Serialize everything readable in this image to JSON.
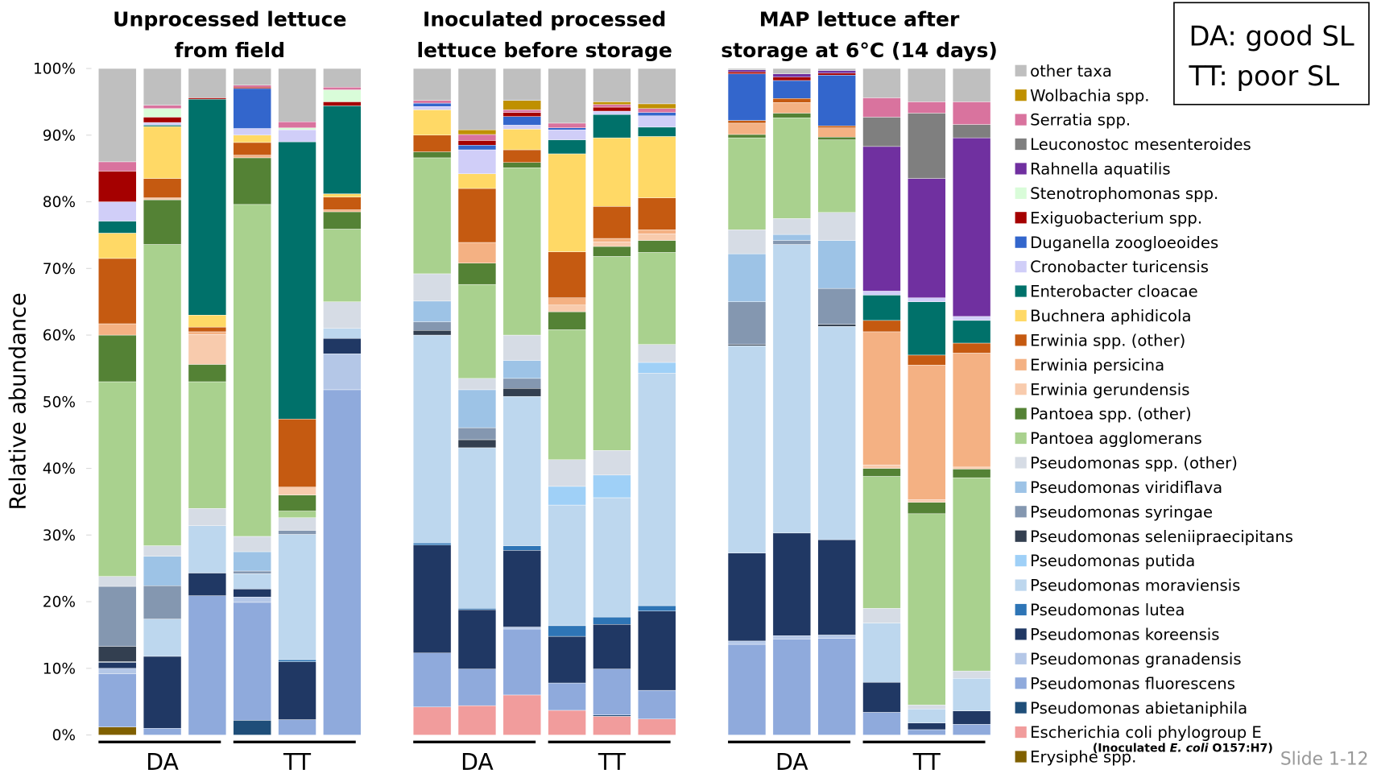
{
  "chart_data": {
    "type": "stacked_bar",
    "y_label": "Relative abundance",
    "ylim": [
      0,
      100
    ],
    "yticks": [
      {
        "value": 0,
        "label": "0%"
      },
      {
        "value": 10,
        "label": "10%"
      },
      {
        "value": 20,
        "label": "20%"
      },
      {
        "value": 30,
        "label": "30%"
      },
      {
        "value": 40,
        "label": "40%"
      },
      {
        "value": 50,
        "label": "50%"
      },
      {
        "value": 60,
        "label": "60%"
      },
      {
        "value": 70,
        "label": "70%"
      },
      {
        "value": 80,
        "label": "80%"
      },
      {
        "value": 90,
        "label": "90%"
      },
      {
        "value": 100,
        "label": "100%"
      }
    ],
    "panels": [
      {
        "title": [
          "Unprocessed lettuce",
          "from field"
        ],
        "groups": [
          "DA",
          "TT"
        ]
      },
      {
        "title": [
          "Inoculated processed",
          "lettuce before storage"
        ],
        "groups": [
          "DA",
          "TT"
        ]
      },
      {
        "title": [
          "MAP lettuce after",
          "storage at 6°C (14 days)"
        ],
        "groups": [
          "DA",
          "TT"
        ]
      }
    ],
    "categories": [
      null,
      null,
      null,
      null,
      null,
      null,
      null,
      null,
      null,
      null,
      null,
      null,
      null,
      null,
      null,
      null,
      null,
      null
    ],
    "note": [
      "DA: good SL",
      "TT: poor SL"
    ],
    "annotation": [
      "(Inoculated ",
      "E. coli",
      " O157:H7)"
    ],
    "footer": "Slide 1-12",
    "series": [
      {
        "name": "Erysiphe spp.",
        "color": "#806000",
        "values": [
          1.2,
          0,
          0,
          0,
          0,
          0,
          0,
          0,
          0,
          0,
          0,
          0,
          0,
          0,
          0,
          0,
          0,
          0
        ]
      },
      {
        "name": "Escherichia coli phylogroup E",
        "color": "#f19c9c",
        "values": [
          0,
          0,
          0,
          0,
          0,
          0,
          4.2,
          4.4,
          6,
          3.7,
          2.8,
          2.4,
          0,
          0,
          0,
          0,
          0,
          0
        ]
      },
      {
        "name": "Pseudomonas abietaniphila",
        "color": "#1f4e79",
        "values": [
          0,
          0,
          0,
          2.2,
          0,
          0,
          0,
          0,
          0,
          0,
          0.2,
          0,
          0,
          0,
          0,
          0,
          0,
          0
        ]
      },
      {
        "name": "Pseudomonas fluorescens",
        "color": "#8faadc",
        "values": [
          8,
          1,
          20.9,
          17.7,
          2.3,
          51.8,
          8.1,
          5.5,
          9.9,
          4.1,
          6.9,
          4.3,
          13.6,
          14.4,
          14.5,
          3.4,
          0.8,
          1.6
        ]
      },
      {
        "name": "Pseudomonas granadensis",
        "color": "#b4c7e7",
        "values": [
          0.8,
          0,
          0,
          0.8,
          0,
          5.4,
          0,
          0,
          0.3,
          0,
          0,
          0,
          0.5,
          0.5,
          0.5,
          0,
          0,
          0
        ]
      },
      {
        "name": "Pseudomonas koreensis",
        "color": "#203864",
        "values": [
          0.9,
          10.8,
          3.4,
          1.2,
          8.7,
          2.3,
          16.2,
          8.9,
          11.5,
          7,
          6.7,
          11.9,
          13.2,
          15.4,
          14.3,
          4.5,
          1,
          2
        ]
      },
      {
        "name": "Pseudomonas lutea",
        "color": "#2e75b6",
        "values": [
          0,
          0,
          0,
          0,
          0.3,
          0,
          0.3,
          0.2,
          0.7,
          1.6,
          1.1,
          0.8,
          0,
          0,
          0,
          0,
          0,
          0
        ]
      },
      {
        "name": "Pseudomonas moraviensis",
        "color": "#bdd7ee",
        "values": [
          0.1,
          5.6,
          7.1,
          2.3,
          18.8,
          1.5,
          31.2,
          24.1,
          22.4,
          18.1,
          17.9,
          34.9,
          31.1,
          43.3,
          32,
          8.9,
          2.1,
          4.9
        ]
      },
      {
        "name": "Pseudomonas putida",
        "color": "#9fd0f7",
        "values": [
          0,
          0,
          0,
          0,
          0,
          0,
          0,
          0,
          0,
          2.8,
          3.4,
          1.6,
          0,
          0,
          0,
          0,
          0,
          0
        ]
      },
      {
        "name": "Pseudomonas seleniipraecipitans",
        "color": "#333f50",
        "values": [
          2.3,
          0,
          0,
          0,
          0,
          0,
          0.7,
          1.2,
          1.2,
          0,
          0,
          0,
          0.2,
          0,
          0.3,
          0,
          0,
          0
        ]
      },
      {
        "name": "Pseudomonas syringae",
        "color": "#8497b0",
        "values": [
          9,
          5,
          0,
          0.4,
          0.6,
          0,
          1.3,
          1.8,
          1.5,
          0,
          0,
          0,
          6.4,
          0.6,
          5.4,
          0,
          0,
          0
        ]
      },
      {
        "name": "Pseudomonas viridiflava",
        "color": "#9dc3e6",
        "values": [
          0,
          4.4,
          0,
          2.9,
          0,
          0,
          3.1,
          5.7,
          2.7,
          0,
          0,
          0,
          7.2,
          0.9,
          7.2,
          0,
          0,
          0
        ]
      },
      {
        "name": "Pseudomonas spp. (other)",
        "color": "#d6dce5",
        "values": [
          1.5,
          1.6,
          2.6,
          2.3,
          1.9,
          4,
          4.1,
          1.7,
          3.8,
          4,
          3.7,
          2.7,
          3.6,
          2.4,
          4.2,
          2.2,
          0.6,
          1.1
        ]
      },
      {
        "name": "Pantoea agglomerans",
        "color": "#a9d18e",
        "values": [
          29.2,
          45.2,
          19,
          49.8,
          1,
          10.9,
          17.4,
          14.1,
          25.1,
          19.5,
          29.1,
          13.8,
          13.8,
          15.1,
          10.9,
          19.8,
          28.7,
          29
        ]
      },
      {
        "name": "Pantoea spp. (other)",
        "color": "#548235",
        "values": [
          7,
          6.7,
          2.6,
          7,
          2.4,
          2.6,
          0.9,
          3.2,
          0.8,
          2.7,
          1.5,
          1.8,
          0.5,
          0.7,
          0.4,
          1.2,
          1.7,
          1.3
        ]
      },
      {
        "name": "Erwinia gerundensis",
        "color": "#f8cbad",
        "values": [
          0,
          0.3,
          4.5,
          0,
          1.2,
          0,
          0,
          0,
          0,
          1,
          0.7,
          1,
          0,
          0,
          0,
          0.5,
          0.4,
          0.3
        ]
      },
      {
        "name": "Erwinia persicina",
        "color": "#f4b183",
        "values": [
          1.7,
          0,
          0.4,
          0.4,
          0,
          0.3,
          0,
          3.1,
          0,
          1.1,
          0.5,
          0.6,
          1.7,
          1.6,
          1.4,
          20,
          20.2,
          17.1
        ]
      },
      {
        "name": "Erwinia spp. (other)",
        "color": "#c55a11",
        "values": [
          9.8,
          2.9,
          0.7,
          1.9,
          10.2,
          1.9,
          2.5,
          8.1,
          1.9,
          6.9,
          4.8,
          4.8,
          0.4,
          0.6,
          0.3,
          1.7,
          1.5,
          1.5
        ]
      },
      {
        "name": "Buchnera aphidicola",
        "color": "#ffd966",
        "values": [
          3.8,
          7.8,
          1.8,
          1.1,
          0,
          0.5,
          3.8,
          2.2,
          3.1,
          14.7,
          10.3,
          9.2,
          0,
          0,
          0,
          0,
          0,
          0
        ]
      },
      {
        "name": "Enterobacter cloacae",
        "color": "#00716a",
        "values": [
          1.8,
          0.2,
          32.4,
          0,
          41.6,
          13.2,
          0,
          0,
          0,
          2.1,
          3.5,
          1.4,
          0,
          0,
          0,
          3.8,
          8,
          3.4
        ]
      },
      {
        "name": "Cronobacter turicensis",
        "color": "#d0cef8",
        "values": [
          2.9,
          0.4,
          0,
          1,
          1.8,
          0,
          0.5,
          3.6,
          0.6,
          1.5,
          0.5,
          1.7,
          0,
          0,
          0,
          0.6,
          0.6,
          0.6
        ]
      },
      {
        "name": "Duganella zoogloeoides",
        "color": "#3366cc",
        "values": [
          0,
          0,
          0,
          6,
          0,
          0,
          0.5,
          0.7,
          1.3,
          0.3,
          0,
          0.5,
          7,
          2.7,
          7.6,
          0,
          0,
          0
        ]
      },
      {
        "name": "Exiguobacterium spp.",
        "color": "#a50000",
        "values": [
          4.6,
          0.8,
          0.2,
          0.2,
          0,
          0.6,
          0,
          0.7,
          0.6,
          0,
          0.6,
          0,
          0.3,
          0.5,
          0.3,
          0,
          0,
          0
        ]
      },
      {
        "name": "Stenotrophomonas spp.",
        "color": "#d9fcd9",
        "values": [
          0,
          1.3,
          0,
          0,
          0.3,
          1.8,
          0,
          0,
          0,
          0,
          0,
          0,
          0,
          0,
          0,
          0,
          0,
          0
        ]
      },
      {
        "name": "Rahnella aquatilis",
        "color": "#7030a0",
        "values": [
          0,
          0,
          0,
          0,
          0,
          0,
          0,
          0,
          0,
          0,
          0,
          0,
          0.3,
          0.5,
          0.4,
          21.7,
          17.9,
          26.8
        ]
      },
      {
        "name": "Leuconostoc mesenteroides",
        "color": "#7f7f7f",
        "values": [
          0,
          0,
          0,
          0,
          0,
          0,
          0,
          0,
          0,
          0,
          0,
          0,
          0,
          0,
          0,
          4.4,
          9.8,
          2
        ]
      },
      {
        "name": "Serratia spp.",
        "color": "#d9739e",
        "values": [
          1.4,
          0.5,
          0,
          0.3,
          0.9,
          0.4,
          0.4,
          0.9,
          0.4,
          0.7,
          0.4,
          0.6,
          0,
          0,
          0,
          2.9,
          1.7,
          3.4
        ]
      },
      {
        "name": "Wolbachia spp.",
        "color": "#bf9000",
        "values": [
          0,
          0,
          0,
          0,
          0,
          0,
          0,
          0.7,
          1.4,
          0,
          0.4,
          0.7,
          0,
          0,
          0,
          0,
          0,
          0
        ]
      },
      {
        "name": "other taxa",
        "color": "#bfbfbf",
        "values": [
          14,
          5.5,
          4.4,
          2.5,
          8,
          2.8,
          4.8,
          9.2,
          4.8,
          8.2,
          5,
          5.3,
          0.2,
          0.8,
          0.3,
          4.4,
          5,
          5
        ]
      }
    ]
  }
}
